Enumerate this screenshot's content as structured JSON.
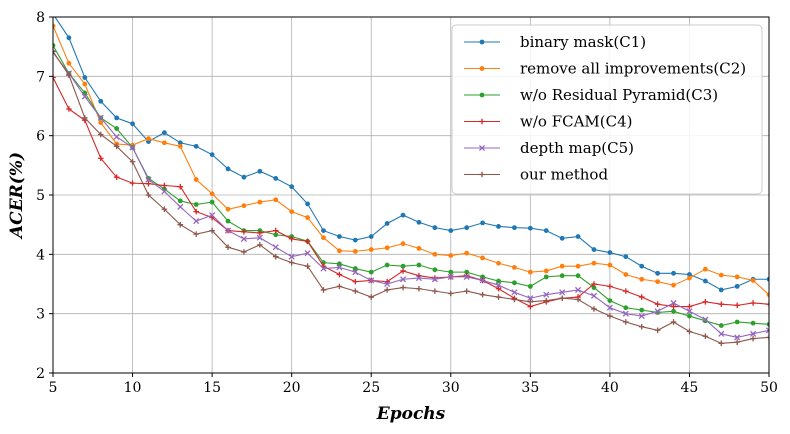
{
  "chart_data": {
    "type": "line",
    "xlabel": "Epochs",
    "ylabel": "ACER(%)",
    "xlim": [
      5,
      50
    ],
    "ylim": [
      2,
      8
    ],
    "xticks": [
      "5",
      "10",
      "15",
      "20",
      "25",
      "30",
      "35",
      "40",
      "45",
      "50"
    ],
    "yticks": [
      "2",
      "3",
      "4",
      "5",
      "6",
      "7",
      "8"
    ],
    "grid": true,
    "legend_position": "top-right",
    "x": [
      5,
      6,
      7,
      8,
      9,
      10,
      11,
      12,
      13,
      14,
      15,
      16,
      17,
      18,
      19,
      20,
      21,
      22,
      23,
      24,
      25,
      26,
      27,
      28,
      29,
      30,
      31,
      32,
      33,
      34,
      35,
      36,
      37,
      38,
      39,
      40,
      41,
      42,
      43,
      44,
      45,
      46,
      47,
      48,
      49,
      50
    ],
    "series": [
      {
        "name": "binary mask(C1)",
        "color": "#1f77b4",
        "marker": "circle",
        "values": [
          8.05,
          7.65,
          6.98,
          6.58,
          6.3,
          6.2,
          5.9,
          6.05,
          5.88,
          5.82,
          5.68,
          5.44,
          5.3,
          5.4,
          5.28,
          5.14,
          4.85,
          4.4,
          4.3,
          4.24,
          4.3,
          4.52,
          4.66,
          4.54,
          4.45,
          4.4,
          4.45,
          4.53,
          4.47,
          4.45,
          4.44,
          4.4,
          4.27,
          4.3,
          4.08,
          4.03,
          3.96,
          3.8,
          3.68,
          3.68,
          3.66,
          3.55,
          3.4,
          3.46,
          3.58,
          3.58
        ]
      },
      {
        "name": "remove all improvements(C2)",
        "color": "#ff7f0e",
        "marker": "circle",
        "values": [
          7.85,
          7.22,
          6.87,
          6.22,
          5.86,
          5.84,
          5.95,
          5.88,
          5.82,
          5.26,
          5.02,
          4.76,
          4.82,
          4.88,
          4.92,
          4.72,
          4.62,
          4.28,
          4.06,
          4.05,
          4.08,
          4.11,
          4.18,
          4.1,
          4.0,
          3.98,
          4.02,
          3.94,
          3.85,
          3.78,
          3.7,
          3.72,
          3.8,
          3.8,
          3.85,
          3.82,
          3.66,
          3.58,
          3.54,
          3.48,
          3.6,
          3.75,
          3.65,
          3.62,
          3.56,
          3.32
        ]
      },
      {
        "name": "w/o Residual Pyramid(C3)",
        "color": "#2ca02c",
        "marker": "circle",
        "values": [
          7.52,
          7.05,
          6.72,
          6.3,
          6.12,
          5.8,
          5.28,
          5.1,
          4.9,
          4.84,
          4.88,
          4.56,
          4.4,
          4.4,
          4.33,
          4.3,
          4.22,
          3.86,
          3.84,
          3.76,
          3.7,
          3.82,
          3.8,
          3.82,
          3.74,
          3.7,
          3.7,
          3.62,
          3.55,
          3.52,
          3.46,
          3.62,
          3.64,
          3.64,
          3.44,
          3.22,
          3.1,
          3.06,
          3.02,
          3.04,
          2.96,
          2.88,
          2.8,
          2.86,
          2.84,
          2.82
        ]
      },
      {
        "name": "w/o FCAM(C4)",
        "color": "#d62728",
        "marker": "plus",
        "values": [
          6.98,
          6.45,
          6.26,
          5.62,
          5.3,
          5.2,
          5.19,
          5.16,
          5.14,
          4.72,
          4.62,
          4.4,
          4.38,
          4.36,
          4.4,
          4.26,
          4.22,
          3.8,
          3.66,
          3.54,
          3.56,
          3.54,
          3.72,
          3.64,
          3.6,
          3.62,
          3.64,
          3.56,
          3.42,
          3.26,
          3.12,
          3.2,
          3.26,
          3.28,
          3.5,
          3.46,
          3.38,
          3.28,
          3.16,
          3.12,
          3.12,
          3.2,
          3.16,
          3.14,
          3.18,
          3.16
        ]
      },
      {
        "name": "depth map(C5)",
        "color": "#9467bd",
        "marker": "x",
        "values": [
          7.4,
          7.05,
          6.66,
          6.3,
          5.98,
          5.8,
          5.26,
          5.06,
          4.8,
          4.56,
          4.66,
          4.4,
          4.26,
          4.28,
          4.12,
          3.96,
          4.02,
          3.76,
          3.78,
          3.7,
          3.56,
          3.5,
          3.58,
          3.6,
          3.58,
          3.62,
          3.62,
          3.56,
          3.48,
          3.36,
          3.26,
          3.32,
          3.36,
          3.4,
          3.3,
          3.1,
          3.0,
          2.96,
          3.04,
          3.18,
          3.04,
          2.9,
          2.66,
          2.6,
          2.66,
          2.72
        ]
      },
      {
        "name": "our method",
        "color": "#8c564b",
        "marker": "plus",
        "values": [
          7.42,
          7.02,
          6.3,
          6.02,
          5.82,
          5.56,
          5.0,
          4.76,
          4.5,
          4.34,
          4.4,
          4.12,
          4.04,
          4.16,
          3.96,
          3.86,
          3.8,
          3.4,
          3.46,
          3.38,
          3.28,
          3.4,
          3.44,
          3.42,
          3.38,
          3.34,
          3.38,
          3.32,
          3.28,
          3.24,
          3.2,
          3.22,
          3.26,
          3.24,
          3.08,
          2.96,
          2.86,
          2.78,
          2.72,
          2.86,
          2.7,
          2.62,
          2.5,
          2.52,
          2.58,
          2.6
        ]
      }
    ]
  }
}
